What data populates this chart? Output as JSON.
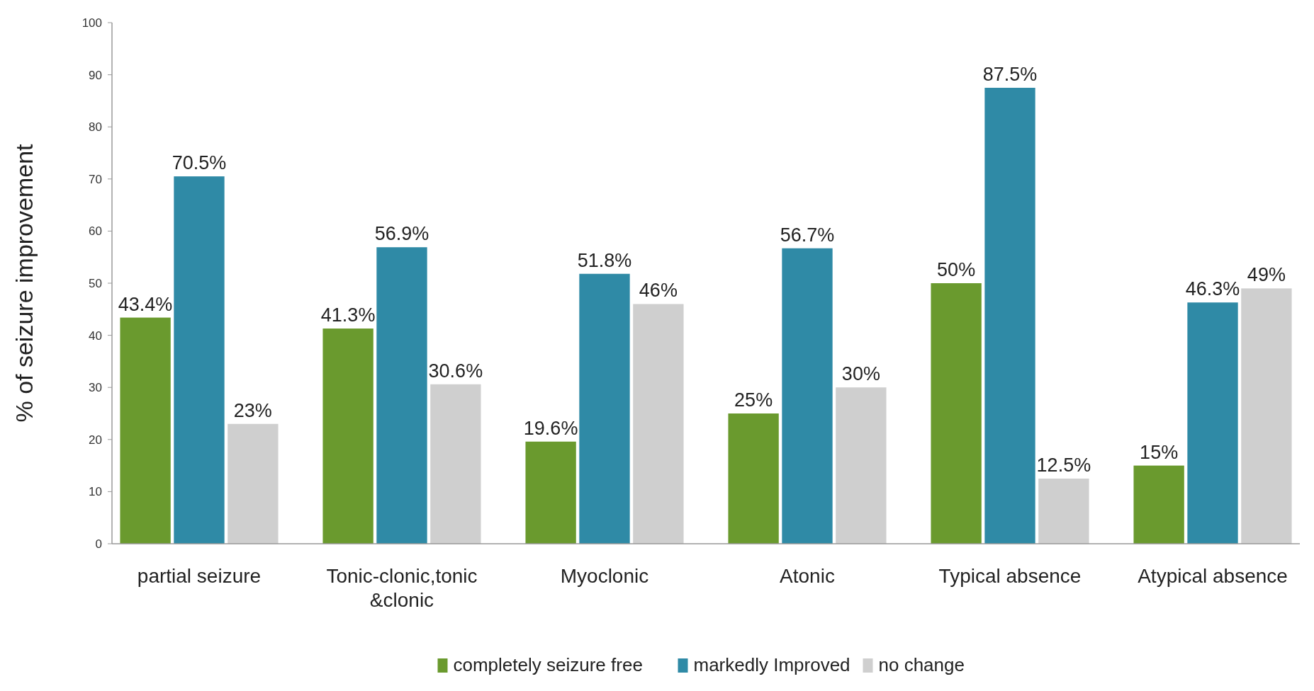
{
  "chart_data": {
    "type": "bar",
    "ylabel": "% of seizure improvement",
    "categories": [
      "partial seizure",
      "Tonic-clonic,tonic &clonic",
      "Myoclonic",
      "Atonic",
      "Typical absence",
      "Atypical absence"
    ],
    "series": [
      {
        "name": "completely seizure free",
        "color": "#6a9a2e",
        "values": [
          43.4,
          41.3,
          19.6,
          25,
          50,
          15
        ],
        "value_labels": [
          "43.4%",
          "41.3%",
          "19.6%",
          "25%",
          "50%",
          "15%"
        ]
      },
      {
        "name": "markedly Improved",
        "color": "#2f8aa6",
        "values": [
          70.5,
          56.9,
          51.8,
          56.7,
          87.5,
          46.3
        ],
        "value_labels": [
          "70.5%",
          "56.9%",
          "51.8%",
          "56.7%",
          "87.5%",
          "46.3%"
        ]
      },
      {
        "name": "no change",
        "color": "#cfcfcf",
        "values": [
          23,
          30.6,
          46,
          30,
          12.5,
          49
        ],
        "value_labels": [
          "23%",
          "30.6%",
          "46%",
          "30%",
          "12.5%",
          "49%"
        ]
      }
    ],
    "ylim": [
      0,
      100
    ],
    "yticks": [
      0,
      10,
      20,
      30,
      40,
      50,
      60,
      70,
      80,
      90,
      100
    ],
    "legend": "bottom"
  }
}
